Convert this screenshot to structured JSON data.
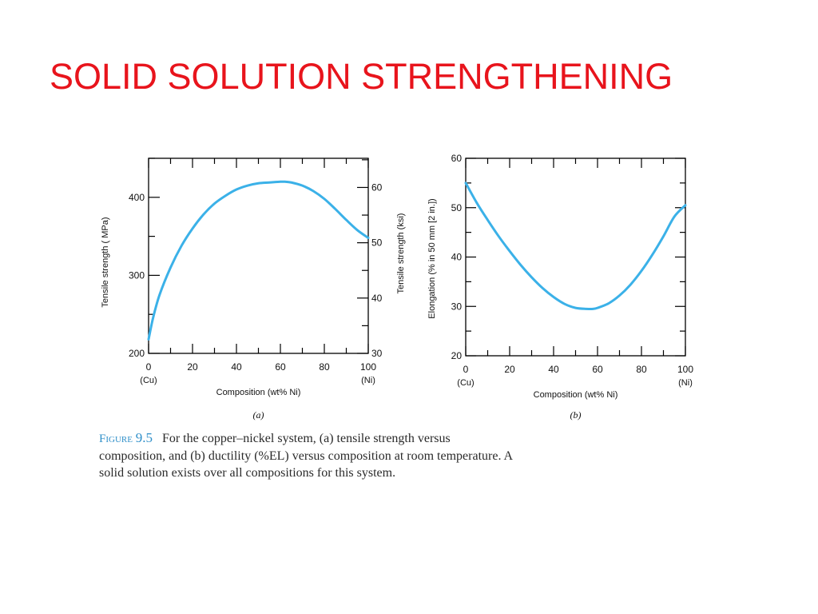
{
  "slide": {
    "title": "SOLID SOLUTION STRENGTHENING"
  },
  "caption": {
    "figure_word": "Figure",
    "figure_number": "9.5",
    "lines": [
      "For the copper–nickel system, (a) tensile strength versus",
      "composition, and (b) ductility (%EL) versus composition at room temperature. A",
      "solid solution exists over all compositions for this system."
    ]
  },
  "colors": {
    "title": "#e8141c",
    "curve": "#3bb1e8",
    "axis": "#000000",
    "figure_label": "#2f8fc9"
  },
  "chart_data": [
    {
      "type": "line",
      "panel_label": "(a)",
      "xlabel": "Composition (wt% Ni)",
      "ylabel": "Tensile strength ( MPa)",
      "y2label": "Tensile strength (ksi)",
      "xlim": [
        0,
        100
      ],
      "ylim": [
        200,
        450
      ],
      "y2lim": [
        30,
        65.27
      ],
      "x_ticks": [
        0,
        20,
        40,
        60,
        80,
        100
      ],
      "x_tick_labels": [
        "0",
        "20",
        "40",
        "60",
        "80",
        "100"
      ],
      "x_end_labels": [
        "(Cu)",
        "(Ni)"
      ],
      "y_ticks": [
        200,
        300,
        400
      ],
      "y2_ticks": [
        30,
        40,
        50,
        60
      ],
      "grid": false,
      "series": [
        {
          "x": [
            0,
            2,
            5,
            10,
            15,
            20,
            25,
            30,
            35,
            40,
            45,
            50,
            55,
            60,
            62,
            65,
            70,
            75,
            80,
            85,
            90,
            95,
            100
          ],
          "values": [
            218,
            245,
            275,
            310,
            338,
            360,
            378,
            392,
            402,
            410,
            415,
            418,
            419,
            420,
            420,
            419,
            415,
            408,
            398,
            385,
            371,
            358,
            348
          ]
        }
      ]
    },
    {
      "type": "line",
      "panel_label": "(b)",
      "xlabel": "Composition (wt% Ni)",
      "ylabel": "Elongation (% in 50 mm [2 in.])",
      "xlim": [
        0,
        100
      ],
      "ylim": [
        20,
        60
      ],
      "x_ticks": [
        0,
        20,
        40,
        60,
        80,
        100
      ],
      "x_tick_labels": [
        "0",
        "20",
        "40",
        "60",
        "80",
        "100"
      ],
      "x_end_labels": [
        "(Cu)",
        "(Ni)"
      ],
      "y_ticks": [
        20,
        30,
        40,
        50,
        60
      ],
      "grid": false,
      "series": [
        {
          "x": [
            0,
            5,
            10,
            15,
            20,
            25,
            30,
            35,
            40,
            45,
            50,
            55,
            58,
            60,
            65,
            70,
            75,
            80,
            85,
            90,
            95,
            100
          ],
          "values": [
            55,
            51,
            47.5,
            44.2,
            41.2,
            38.4,
            35.9,
            33.7,
            31.9,
            30.5,
            29.7,
            29.5,
            29.5,
            29.7,
            30.6,
            32.2,
            34.4,
            37.2,
            40.5,
            44.2,
            48.2,
            50.5
          ]
        }
      ]
    }
  ]
}
